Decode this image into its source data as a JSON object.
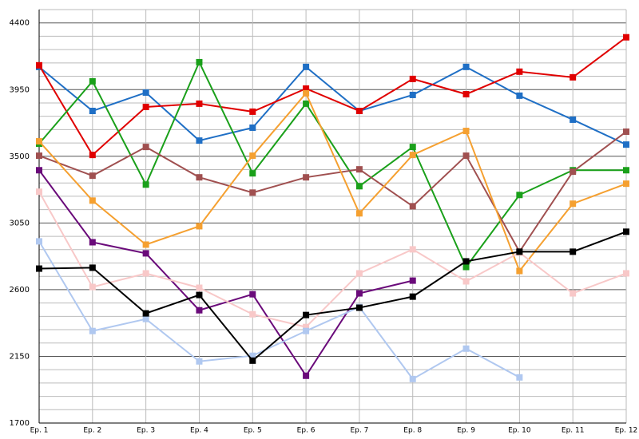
{
  "chart_data": {
    "type": "line",
    "categories": [
      "Ep. 1",
      "Ep. 2",
      "Ep. 3",
      "Ep. 4",
      "Ep. 5",
      "Ep. 6",
      "Ep. 7",
      "Ep. 8",
      "Ep. 9",
      "Ep. 10",
      "Ep. 11",
      "Ep. 12"
    ],
    "ylim": [
      1700,
      4490
    ],
    "yticks": [
      1700,
      2150,
      2600,
      3050,
      3500,
      3950,
      4400
    ],
    "grid": true,
    "series": [
      {
        "color": "#1f6fc5",
        "values": [
          4103,
          3806,
          3930,
          3606,
          3693,
          4103,
          3806,
          3914,
          4103,
          3909,
          3747,
          3579
        ]
      },
      {
        "color": "#e00000",
        "values": [
          4114,
          3509,
          3833,
          3855,
          3801,
          3957,
          3806,
          4022,
          3919,
          4071,
          4033,
          4303
        ]
      },
      {
        "color": "#1aa01a",
        "values": [
          3585,
          4006,
          3309,
          4135,
          3385,
          3855,
          3298,
          3563,
          2753,
          3239,
          3406,
          3406
        ]
      },
      {
        "color": "#a05050",
        "values": [
          3504,
          3369,
          3563,
          3358,
          3255,
          3358,
          3412,
          3163,
          3504,
          2856,
          3396,
          3666
        ]
      },
      {
        "color": "#f5a030",
        "values": [
          3601,
          3201,
          2904,
          3028,
          3504,
          3925,
          3115,
          3509,
          3671,
          2726,
          3180,
          3315
        ]
      },
      {
        "color": "#6a0a7a",
        "values": [
          3406,
          2920,
          2845,
          2461,
          2569,
          2019,
          2575,
          2661,
          null,
          null,
          null,
          null
        ]
      },
      {
        "color": "#f8c8c8",
        "values": [
          3261,
          2618,
          2710,
          2613,
          2434,
          2348,
          2710,
          2872,
          2656,
          2850,
          2575,
          2710
        ]
      },
      {
        "color": "#b0c8f0",
        "values": [
          2926,
          2321,
          2402,
          2116,
          2154,
          2321,
          2483,
          1997,
          2202,
          2008,
          null,
          null
        ]
      },
      {
        "color": "#000000",
        "values": [
          2742,
          2748,
          2440,
          2564,
          2121,
          2429,
          2478,
          2553,
          2791,
          2856,
          2856,
          2991
        ]
      }
    ]
  }
}
